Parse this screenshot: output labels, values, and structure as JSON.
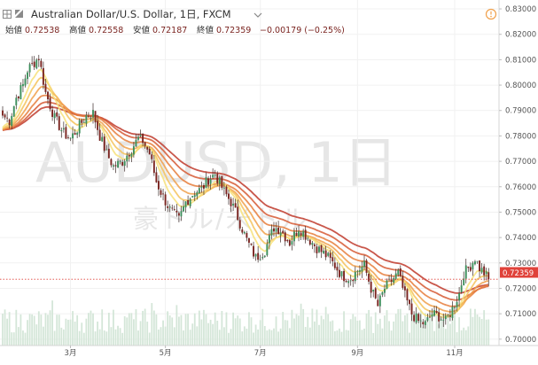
{
  "header": {
    "title": "Australian Dollar/U.S. Dollar, 1日, FXCM",
    "ohlc": [
      {
        "label": "始値",
        "value": "0.72538"
      },
      {
        "label": "高値",
        "value": "0.72558"
      },
      {
        "label": "安値",
        "value": "0.72187"
      },
      {
        "label": "終値",
        "value": "0.72359"
      }
    ],
    "change": "−0.00179 (−0.25%)"
  },
  "watermark": {
    "symbol": "AUDUSD, 1日",
    "name": "豪ドル/米ドル"
  },
  "icons": {
    "expand": "expand-icon",
    "collapse": "collapse-icon",
    "dropdown": "chevron-down-icon",
    "alert": "alert-icon"
  },
  "colors": {
    "up": "#3d8f5c",
    "down": "#7a2420",
    "ribbon_fast": "#f7dd6a",
    "ribbon_slow": "#c0392b",
    "last_price": "#e0423a",
    "volume": "#d4e6d8"
  },
  "chart_data": {
    "type": "candlestick",
    "symbol": "AUDUSD",
    "timeframe": "1日",
    "last_price": 0.72359,
    "ylim": [
      0.6975,
      0.8335
    ],
    "y_ticks": [
      "0.70000",
      "0.71000",
      "0.72000",
      "0.73000",
      "0.74000",
      "0.75000",
      "0.76000",
      "0.77000",
      "0.78000",
      "0.79000",
      "0.80000",
      "0.81000",
      "0.82000",
      "0.83000"
    ],
    "x_ticks": [
      {
        "label": "3月",
        "index": 30
      },
      {
        "label": "5月",
        "index": 72
      },
      {
        "label": "7月",
        "index": 114
      },
      {
        "label": "9月",
        "index": 157
      },
      {
        "label": "11月",
        "index": 200
      }
    ],
    "close_path": [
      [
        0,
        0.788
      ],
      [
        3,
        0.786
      ],
      [
        6,
        0.795
      ],
      [
        9,
        0.8
      ],
      [
        11,
        0.806
      ],
      [
        14,
        0.809
      ],
      [
        16,
        0.811
      ],
      [
        19,
        0.797
      ],
      [
        23,
        0.787
      ],
      [
        27,
        0.781
      ],
      [
        30,
        0.779
      ],
      [
        34,
        0.784
      ],
      [
        37,
        0.788
      ],
      [
        40,
        0.789
      ],
      [
        43,
        0.78
      ],
      [
        46,
        0.773
      ],
      [
        49,
        0.768
      ],
      [
        53,
        0.77
      ],
      [
        57,
        0.775
      ],
      [
        60,
        0.779
      ],
      [
        62,
        0.778
      ],
      [
        65,
        0.773
      ],
      [
        68,
        0.762
      ],
      [
        71,
        0.756
      ],
      [
        74,
        0.751
      ],
      [
        78,
        0.747
      ],
      [
        81,
        0.754
      ],
      [
        85,
        0.758
      ],
      [
        88,
        0.759
      ],
      [
        91,
        0.763
      ],
      [
        94,
        0.765
      ],
      [
        98,
        0.758
      ],
      [
        101,
        0.754
      ],
      [
        104,
        0.748
      ],
      [
        108,
        0.739
      ],
      [
        112,
        0.732
      ],
      [
        116,
        0.735
      ],
      [
        120,
        0.744
      ],
      [
        123,
        0.743
      ],
      [
        127,
        0.738
      ],
      [
        131,
        0.744
      ],
      [
        135,
        0.74
      ],
      [
        139,
        0.736
      ],
      [
        143,
        0.733
      ],
      [
        147,
        0.729
      ],
      [
        150,
        0.725
      ],
      [
        154,
        0.724
      ],
      [
        157,
        0.727
      ],
      [
        160,
        0.729
      ],
      [
        163,
        0.72
      ],
      [
        166,
        0.713
      ],
      [
        169,
        0.72
      ],
      [
        172,
        0.723
      ],
      [
        175,
        0.726
      ],
      [
        178,
        0.717
      ],
      [
        181,
        0.71
      ],
      [
        184,
        0.707
      ],
      [
        187,
        0.706
      ],
      [
        190,
        0.71
      ],
      [
        193,
        0.709
      ],
      [
        196,
        0.707
      ],
      [
        199,
        0.712
      ],
      [
        202,
        0.718
      ],
      [
        204,
        0.726
      ],
      [
        207,
        0.729
      ],
      [
        209,
        0.732
      ],
      [
        211,
        0.728
      ],
      [
        213,
        0.726
      ],
      [
        215,
        0.7236
      ]
    ],
    "ribbon_lengths": [
      8,
      13,
      20,
      30,
      42,
      55
    ],
    "volume": "relative histogram bars at bottom"
  }
}
